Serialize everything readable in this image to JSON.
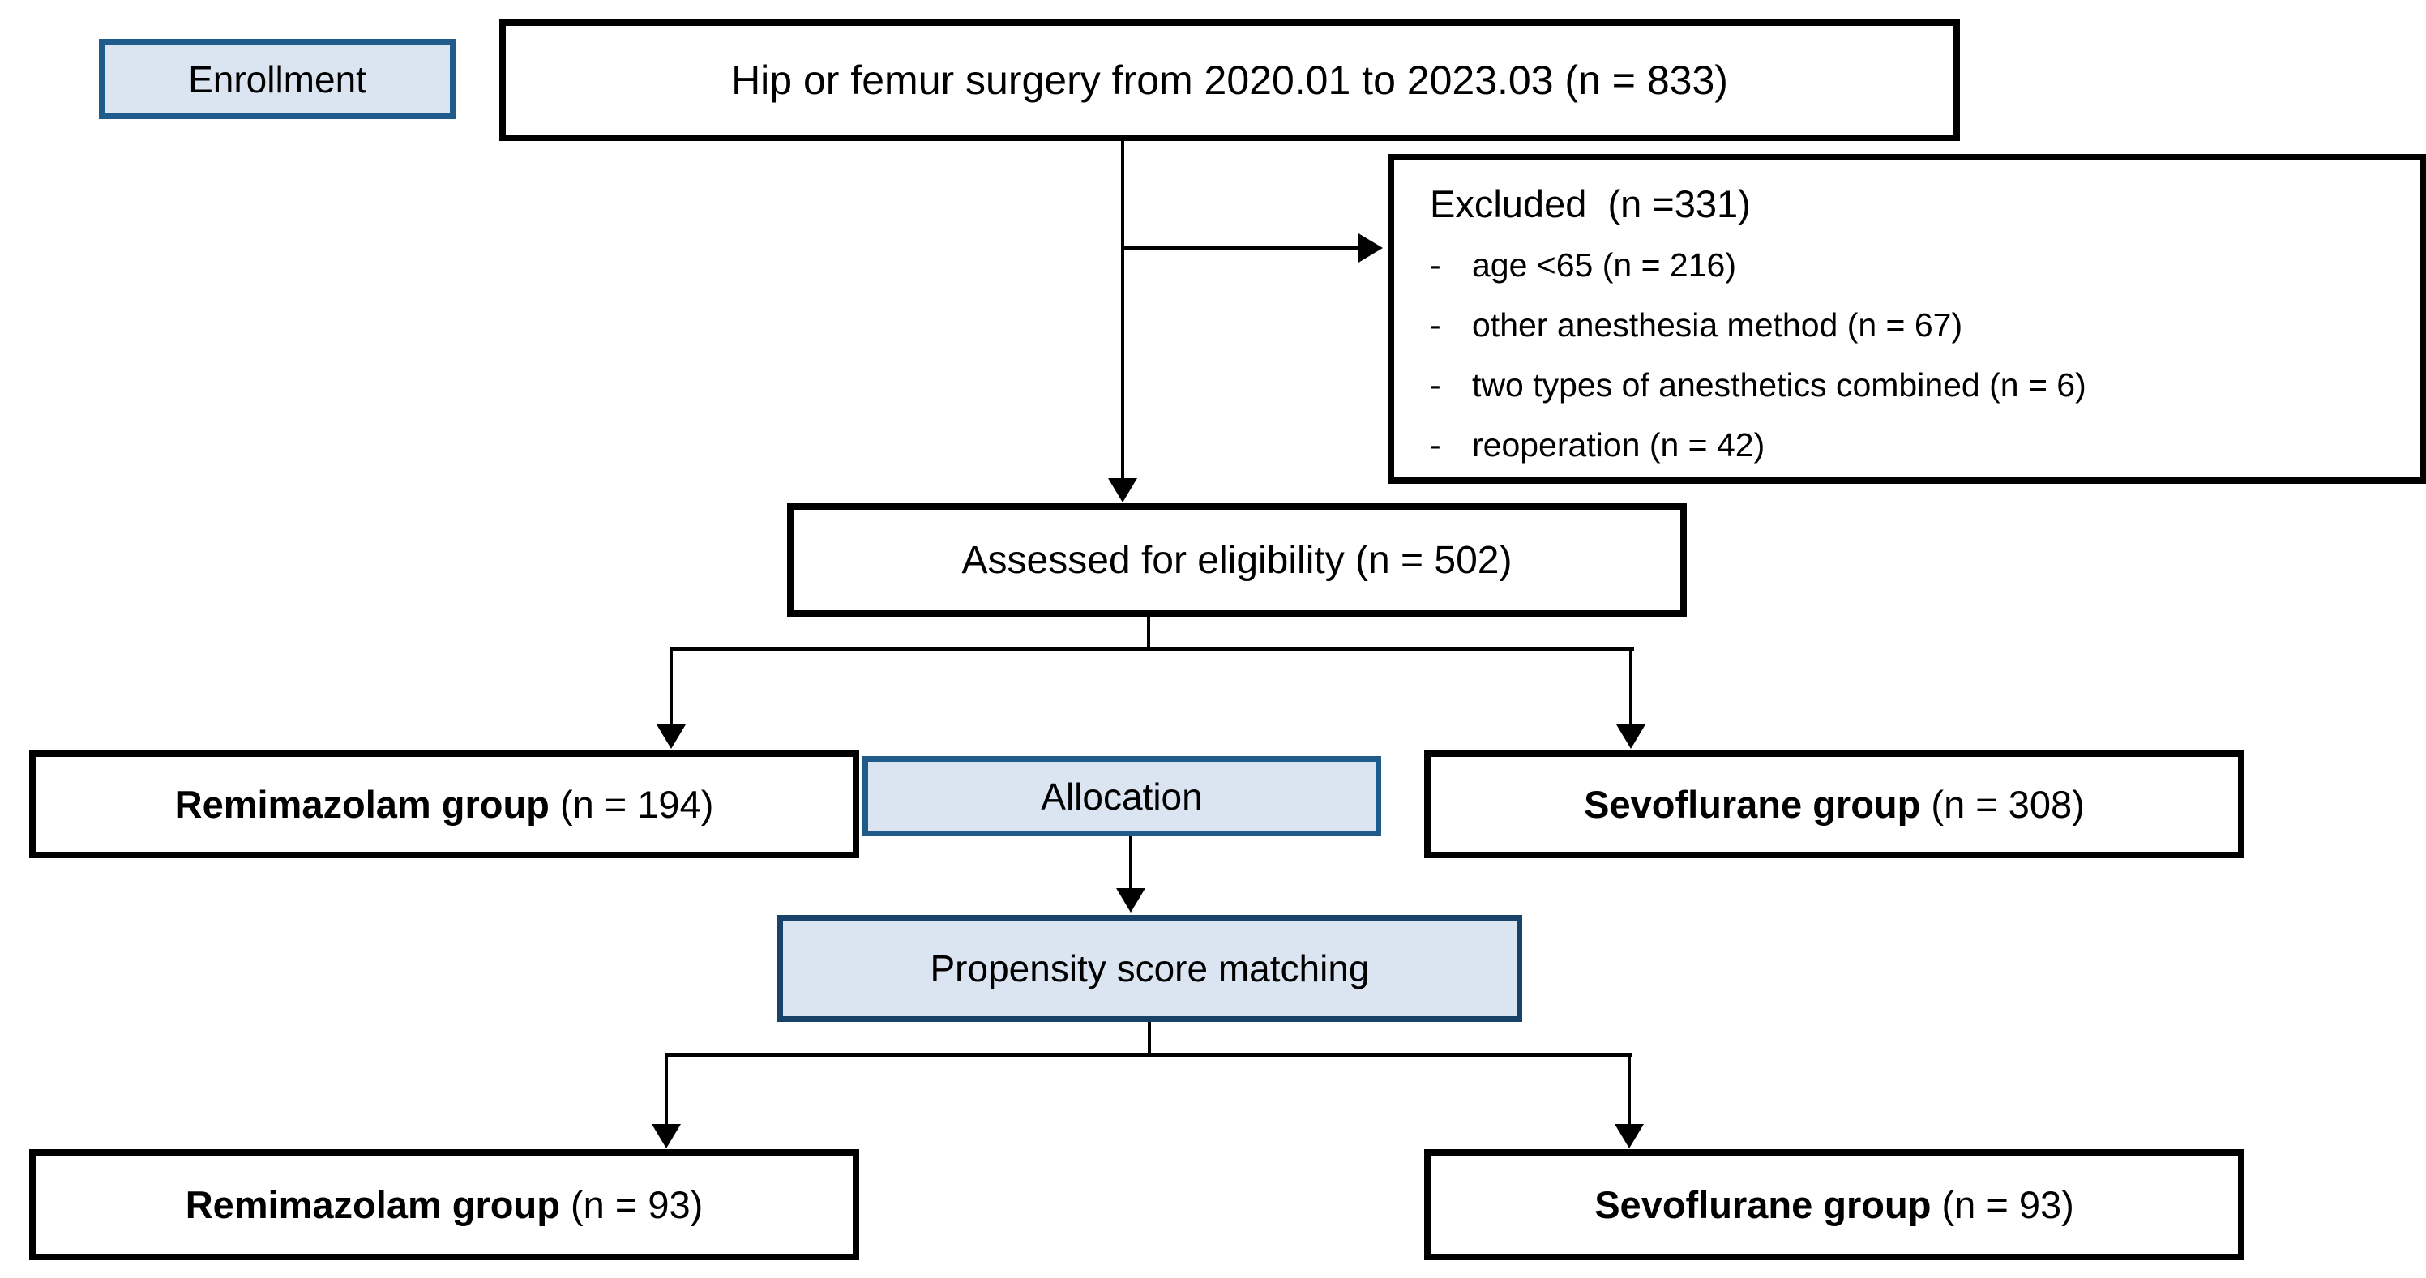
{
  "stages": {
    "enrollment": "Enrollment",
    "allocation": "Allocation",
    "matching": "Propensity score matching"
  },
  "boxes": {
    "surgery": "Hip or femur surgery from 2020.01 to 2023.03 (n = 833)",
    "assessed": "Assessed for eligibility (n = 502)",
    "remimazolam_allocated": {
      "name": "Remimazolam group",
      "count": "(n = 194)"
    },
    "sevoflurane_allocated": {
      "name": "Sevoflurane group",
      "count": "(n = 308)"
    },
    "remimazolam_matched": {
      "name": "Remimazolam group",
      "count": "(n = 93)"
    },
    "sevoflurane_matched": {
      "name": "Sevoflurane group",
      "count": "(n = 93)"
    }
  },
  "excluded": {
    "title": "Excluded  (n =331)",
    "bullet": "-",
    "items": [
      "age <65 (n = 216)",
      "other anesthesia method (n = 67)",
      "two types of anesthetics combined (n = 6)",
      "reoperation (n = 42)"
    ]
  },
  "colors": {
    "stage_fill": "#dbe5f1",
    "stage_border": "#1f5c8c",
    "matching_border": "#17436b",
    "line": "#000000"
  }
}
